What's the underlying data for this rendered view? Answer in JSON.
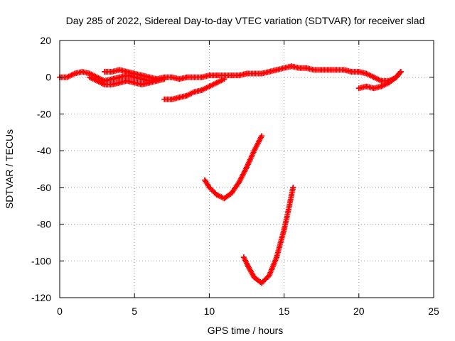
{
  "chart_data": {
    "type": "scatter",
    "title": "Day 285 of 2022, Sidereal Day-to-day VTEC variation (SDTVAR) for receiver slad",
    "xlabel": "GPS time / hours",
    "ylabel": "SDTVAR / TECUs",
    "xlim": [
      0,
      25
    ],
    "ylim": [
      -120,
      20
    ],
    "x_ticks": [
      0,
      5,
      10,
      15,
      20,
      25
    ],
    "y_ticks": [
      -120,
      -100,
      -80,
      -60,
      -40,
      -20,
      0,
      20
    ],
    "grid": true,
    "legend": "none",
    "marker": "plus",
    "color": "#ff0000",
    "series": [
      {
        "x": [
          0,
          0.5,
          1,
          1.5,
          2,
          2.5,
          3,
          3.5,
          4,
          4.5,
          5,
          5.5,
          6,
          6.5,
          7,
          7.5,
          8,
          8.5,
          9,
          9.5,
          10,
          10.5,
          11,
          11.5,
          12,
          12.5,
          13,
          13.5,
          14,
          14.5,
          15,
          15.5,
          16,
          16.5,
          17,
          17.5,
          18,
          18.5,
          19,
          19.5,
          20,
          20.5,
          21,
          21.5,
          22,
          22.5,
          22.8
        ],
        "y": [
          0,
          0,
          2,
          3,
          2,
          0,
          -2,
          -1,
          0,
          1,
          0,
          -1,
          -2,
          -1,
          0,
          0,
          -1,
          0,
          0,
          0,
          1,
          1,
          1,
          1,
          1,
          2,
          2,
          2,
          3,
          4,
          5,
          6,
          5,
          5,
          4,
          4,
          4,
          4,
          4,
          3,
          3,
          2,
          0,
          -2,
          -2,
          0,
          3
        ]
      },
      {
        "x": [
          2,
          2.5,
          3,
          3.5,
          4,
          4.5,
          5,
          5.5,
          6,
          6.5,
          7
        ],
        "y": [
          0,
          -2,
          -4,
          -4,
          -3,
          -2,
          -3,
          -4,
          -3,
          -2,
          -1
        ]
      },
      {
        "x": [
          3,
          3.5,
          4,
          4.5,
          5,
          5.5,
          6,
          6.5
        ],
        "y": [
          3,
          3,
          4,
          3,
          2,
          1,
          0,
          -1
        ]
      },
      {
        "x": [
          7,
          7.5,
          8,
          8.5,
          9,
          9.5,
          10,
          10.5,
          11
        ],
        "y": [
          -12,
          -12,
          -11,
          -10,
          -8,
          -7,
          -5,
          -3,
          -1
        ]
      },
      {
        "x": [
          20,
          20.5,
          21,
          21.5,
          22,
          22.5,
          22.8
        ],
        "y": [
          -6,
          -5,
          -6,
          -5,
          -3,
          0,
          3
        ]
      },
      {
        "x": [
          9.7,
          10,
          10.5,
          11,
          11.5,
          12,
          12.5,
          13,
          13.5
        ],
        "y": [
          -56,
          -60,
          -64,
          -66,
          -63,
          -57,
          -49,
          -40,
          -32
        ]
      },
      {
        "x": [
          12.3,
          12.6,
          13,
          13.5,
          14,
          14.5,
          15,
          15.3,
          15.6
        ],
        "y": [
          -98,
          -103,
          -109,
          -112,
          -108,
          -98,
          -83,
          -72,
          -60
        ]
      }
    ]
  }
}
